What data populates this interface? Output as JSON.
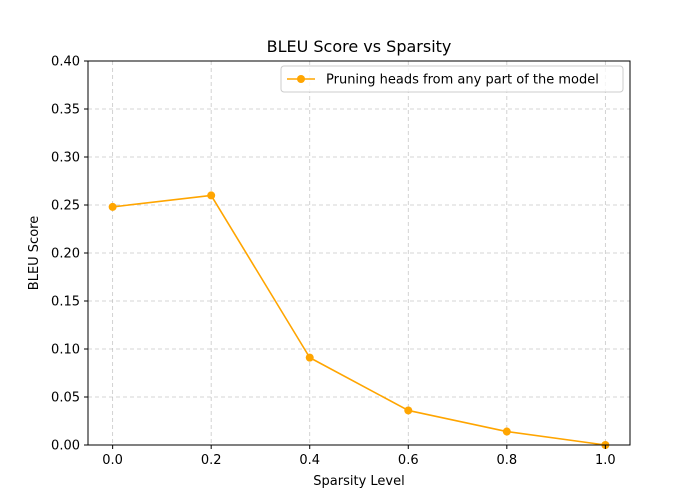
{
  "chart_data": {
    "type": "line",
    "title": "BLEU Score vs Sparsity",
    "xlabel": "Sparsity Level",
    "ylabel": "BLEU Score",
    "xlim": [
      -0.05,
      1.05
    ],
    "ylim": [
      0.0,
      0.4
    ],
    "x_ticks": [
      "0.0",
      "0.2",
      "0.4",
      "0.6",
      "0.8",
      "1.0"
    ],
    "y_ticks": [
      "0.00",
      "0.05",
      "0.10",
      "0.15",
      "0.20",
      "0.25",
      "0.30",
      "0.35",
      "0.40"
    ],
    "grid": true,
    "legend_position": "top-right",
    "series": [
      {
        "name": "Pruning heads from any part of the model",
        "color": "#ffa500",
        "marker": "circle",
        "x": [
          0.0,
          0.2,
          0.4,
          0.6,
          0.8,
          1.0
        ],
        "y": [
          0.248,
          0.26,
          0.091,
          0.036,
          0.014,
          0.0
        ]
      }
    ]
  }
}
